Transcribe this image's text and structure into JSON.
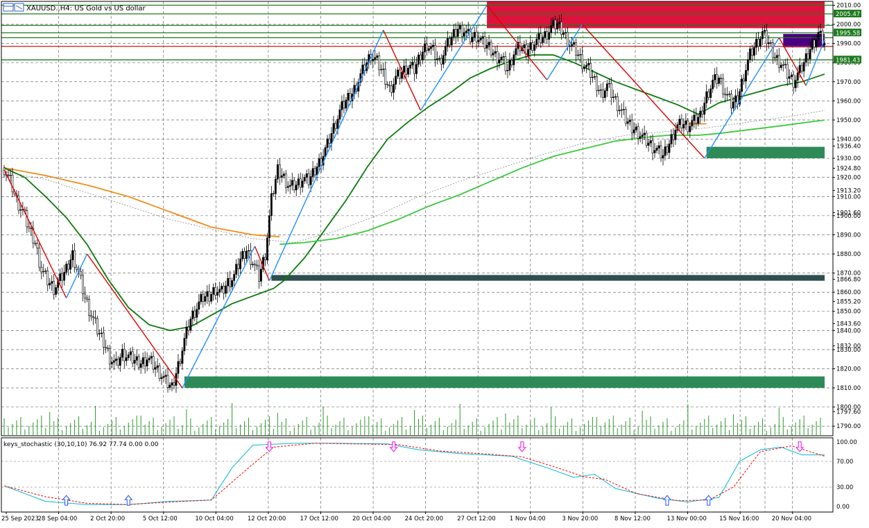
{
  "header": {
    "symbol_label": "XAUUSD.,H4:  US Gold vs US dollar",
    "icon": "chart-window-icon"
  },
  "indicator": {
    "label": "keys_stochastic (30,10,10) 76.92 77.74 0.00 0.00",
    "levels": [
      "100.00",
      "70.00",
      "30.00",
      "0.00"
    ]
  },
  "colors": {
    "bull_candle": "#000000",
    "up_leg": "#1e90ff",
    "down_leg": "#e00000",
    "ma_fast": "#0a7a0a",
    "ma_slow": "#3cc83c",
    "ma_orange": "#f08c14",
    "supply_zone": "#dc143c",
    "demand_zone": "#2e8b57",
    "dark_zone": "#2f4f4f",
    "purple_zone": "#4b0082",
    "stoch_main": "#00bcd4",
    "stoch_signal": "#ff0000",
    "arrow_down": "#ff00ff",
    "arrow_up": "#1e50ff"
  },
  "chart_data": {
    "type": "candlestick",
    "symbol": "XAUUSD.",
    "timeframe": "H4",
    "ylim": [
      1785,
      2012
    ],
    "y_ticks": [
      "2010.00",
      "2000.00",
      "1990.00",
      "1980.00",
      "1970.00",
      "1960.00",
      "1950.00",
      "1940.00",
      "1936.40",
      "1930.00",
      "1924.80",
      "1920.00",
      "1913.20",
      "1910.00",
      "1901.60",
      "1900.00",
      "1890.00",
      "1880.00",
      "1870.00",
      "1866.80",
      "1860.00",
      "1855.20",
      "1850.00",
      "1843.60",
      "1840.00",
      "1832.00",
      "1830.00",
      "1820.00",
      "1810.00",
      "1800.00",
      "1797.60",
      "1790.00"
    ],
    "price_tags": [
      {
        "label": "2005.47",
        "value": 2005.47,
        "color": "#1e7a1e"
      },
      {
        "label": "1995.58",
        "value": 1995.58,
        "color": "#1e7a1e"
      },
      {
        "label": "1981.43",
        "value": 1981.43,
        "color": "#1e7a1e"
      }
    ],
    "x_labels": [
      "25 Sep 2023",
      "28 Sep 04:00",
      "2 Oct 20:00",
      "5 Oct 12:00",
      "10 Oct 04:00",
      "12 Oct 20:00",
      "17 Oct 12:00",
      "20 Oct 04:00",
      "24 Oct 20:00",
      "27 Oct 12:00",
      "1 Nov 04:00",
      "3 Nov 20:00",
      "8 Nov 12:00",
      "13 Nov 00:00",
      "15 Nov 16:00",
      "20 Nov 04:00"
    ],
    "close_path": [
      [
        0,
        1925
      ],
      [
        3,
        1918
      ],
      [
        6,
        1908
      ],
      [
        9,
        1902
      ],
      [
        12,
        1893
      ],
      [
        15,
        1886
      ],
      [
        18,
        1872
      ],
      [
        21,
        1866
      ],
      [
        24,
        1862
      ],
      [
        27,
        1866
      ],
      [
        30,
        1872
      ],
      [
        33,
        1880
      ],
      [
        36,
        1870
      ],
      [
        39,
        1857
      ],
      [
        42,
        1848
      ],
      [
        45,
        1840
      ],
      [
        48,
        1834
      ],
      [
        51,
        1826
      ],
      [
        54,
        1822
      ],
      [
        57,
        1828
      ],
      [
        60,
        1826
      ],
      [
        63,
        1824
      ],
      [
        66,
        1823
      ],
      [
        69,
        1826
      ],
      [
        72,
        1822
      ],
      [
        75,
        1818
      ],
      [
        78,
        1813
      ],
      [
        81,
        1810
      ],
      [
        84,
        1822
      ],
      [
        87,
        1835
      ],
      [
        90,
        1846
      ],
      [
        93,
        1852
      ],
      [
        96,
        1857
      ],
      [
        99,
        1858
      ],
      [
        102,
        1862
      ],
      [
        105,
        1860
      ],
      [
        108,
        1865
      ],
      [
        111,
        1868
      ],
      [
        114,
        1877
      ],
      [
        117,
        1882
      ],
      [
        120,
        1876
      ],
      [
        123,
        1868
      ],
      [
        126,
        1880
      ],
      [
        129,
        1908
      ],
      [
        132,
        1924
      ],
      [
        135,
        1920
      ],
      [
        138,
        1915
      ],
      [
        141,
        1916
      ],
      [
        144,
        1919
      ],
      [
        147,
        1918
      ],
      [
        150,
        1924
      ],
      [
        153,
        1930
      ],
      [
        156,
        1937
      ],
      [
        159,
        1946
      ],
      [
        162,
        1954
      ],
      [
        165,
        1960
      ],
      [
        168,
        1964
      ],
      [
        171,
        1971
      ],
      [
        174,
        1978
      ],
      [
        177,
        1984
      ],
      [
        180,
        1980
      ],
      [
        183,
        1974
      ],
      [
        186,
        1966
      ],
      [
        189,
        1972
      ],
      [
        192,
        1975
      ],
      [
        195,
        1978
      ],
      [
        198,
        1976
      ],
      [
        201,
        1984
      ],
      [
        204,
        1990
      ],
      [
        207,
        1986
      ],
      [
        210,
        1980
      ],
      [
        213,
        1987
      ],
      [
        216,
        1993
      ],
      [
        219,
        1998
      ],
      [
        222,
        1997
      ],
      [
        225,
        1993
      ],
      [
        228,
        1994
      ],
      [
        231,
        1990
      ],
      [
        234,
        1988
      ],
      [
        237,
        1984
      ],
      [
        240,
        1982
      ],
      [
        243,
        1976
      ],
      [
        246,
        1985
      ],
      [
        249,
        1988
      ],
      [
        252,
        1986
      ],
      [
        255,
        1990
      ],
      [
        258,
        1992
      ],
      [
        261,
        1994
      ],
      [
        264,
        1998
      ],
      [
        267,
        2000
      ],
      [
        270,
        1996
      ],
      [
        273,
        1990
      ],
      [
        276,
        1986
      ],
      [
        279,
        1980
      ],
      [
        282,
        1976
      ],
      [
        285,
        1970
      ],
      [
        288,
        1964
      ],
      [
        291,
        1968
      ],
      [
        294,
        1962
      ],
      [
        297,
        1956
      ],
      [
        300,
        1950
      ],
      [
        303,
        1946
      ],
      [
        306,
        1944
      ],
      [
        309,
        1940
      ],
      [
        312,
        1937
      ],
      [
        315,
        1934
      ],
      [
        318,
        1931
      ],
      [
        321,
        1938
      ],
      [
        324,
        1946
      ],
      [
        327,
        1948
      ],
      [
        330,
        1947
      ],
      [
        333,
        1949
      ],
      [
        336,
        1952
      ],
      [
        339,
        1963
      ],
      [
        342,
        1970
      ],
      [
        345,
        1972
      ],
      [
        348,
        1964
      ],
      [
        351,
        1958
      ],
      [
        354,
        1961
      ],
      [
        357,
        1974
      ],
      [
        360,
        1984
      ],
      [
        363,
        1990
      ],
      [
        366,
        1995
      ],
      [
        369,
        1990
      ],
      [
        372,
        1983
      ],
      [
        375,
        1980
      ],
      [
        378,
        1974
      ],
      [
        381,
        1970
      ],
      [
        384,
        1975
      ],
      [
        387,
        1982
      ],
      [
        390,
        1990
      ],
      [
        393,
        1995
      ],
      [
        396,
        1990
      ]
    ],
    "moving_averages": [
      {
        "name": "orange",
        "points": [
          [
            0,
            1925
          ],
          [
            20,
            1921
          ],
          [
            40,
            1916
          ],
          [
            60,
            1910
          ],
          [
            80,
            1902
          ],
          [
            100,
            1894
          ],
          [
            120,
            1890
          ],
          [
            133,
            1889
          ]
        ]
      },
      {
        "name": "grey-dotted",
        "points": [
          [
            0,
            1923
          ],
          [
            20,
            1919
          ],
          [
            40,
            1912
          ],
          [
            60,
            1905
          ],
          [
            80,
            1898
          ],
          [
            100,
            1893
          ],
          [
            120,
            1888
          ],
          [
            140,
            1886
          ],
          [
            160,
            1892
          ],
          [
            180,
            1900
          ],
          [
            200,
            1910
          ],
          [
            220,
            1918
          ],
          [
            240,
            1925
          ],
          [
            260,
            1932
          ],
          [
            280,
            1938
          ],
          [
            300,
            1942
          ],
          [
            320,
            1944
          ],
          [
            340,
            1946
          ],
          [
            360,
            1949
          ],
          [
            380,
            1952
          ],
          [
            396,
            1955
          ]
        ]
      },
      {
        "name": "green-fast",
        "points": [
          [
            0,
            1925
          ],
          [
            10,
            1920
          ],
          [
            20,
            1910
          ],
          [
            30,
            1899
          ],
          [
            40,
            1885
          ],
          [
            50,
            1867
          ],
          [
            60,
            1852
          ],
          [
            70,
            1843
          ],
          [
            80,
            1840
          ],
          [
            90,
            1842
          ],
          [
            100,
            1848
          ],
          [
            110,
            1854
          ],
          [
            120,
            1858
          ],
          [
            130,
            1862
          ],
          [
            135,
            1866
          ],
          [
            145,
            1878
          ],
          [
            155,
            1893
          ],
          [
            165,
            1908
          ],
          [
            175,
            1925
          ],
          [
            185,
            1940
          ],
          [
            195,
            1949
          ],
          [
            205,
            1957
          ],
          [
            215,
            1964
          ],
          [
            225,
            1972
          ],
          [
            235,
            1977
          ],
          [
            245,
            1981
          ],
          [
            255,
            1984
          ],
          [
            265,
            1984
          ],
          [
            275,
            1980
          ],
          [
            285,
            1975
          ],
          [
            295,
            1970
          ],
          [
            305,
            1966
          ],
          [
            315,
            1962
          ],
          [
            325,
            1958
          ],
          [
            335,
            1953
          ],
          [
            345,
            1959
          ],
          [
            355,
            1962
          ],
          [
            365,
            1965
          ],
          [
            375,
            1968
          ],
          [
            385,
            1970
          ],
          [
            396,
            1974
          ]
        ]
      },
      {
        "name": "green-slow",
        "points": [
          [
            133,
            1885
          ],
          [
            145,
            1886
          ],
          [
            160,
            1888
          ],
          [
            175,
            1892
          ],
          [
            190,
            1898
          ],
          [
            205,
            1905
          ],
          [
            220,
            1911
          ],
          [
            235,
            1918
          ],
          [
            250,
            1925
          ],
          [
            265,
            1931
          ],
          [
            280,
            1935
          ],
          [
            295,
            1939
          ],
          [
            310,
            1941
          ],
          [
            320,
            1942
          ],
          [
            335,
            1942
          ],
          [
            345,
            1943
          ],
          [
            360,
            1945
          ],
          [
            375,
            1947
          ],
          [
            396,
            1950
          ]
        ]
      }
    ],
    "zigzag": [
      [
        0,
        1924,
        "down"
      ],
      [
        30,
        1857,
        "up"
      ],
      [
        40,
        1880,
        "down"
      ],
      [
        86,
        1810,
        "up"
      ],
      [
        121,
        1884,
        "down"
      ],
      [
        128,
        1866,
        "up"
      ],
      [
        183,
        1997,
        "down"
      ],
      [
        201,
        1955,
        "up"
      ],
      [
        233,
        2010,
        "down"
      ],
      [
        262,
        1971,
        "up"
      ],
      [
        279,
        2000,
        "down"
      ],
      [
        338,
        1930,
        "up"
      ],
      [
        374,
        1993,
        "down"
      ],
      [
        387,
        1968,
        "up"
      ],
      [
        396,
        1992,
        "down"
      ]
    ],
    "zones": [
      {
        "name": "supply",
        "from": 233,
        "to": 396,
        "y0": 1998,
        "y1": 2012
      },
      {
        "name": "purple",
        "from": 376,
        "to": 396,
        "y0": 1988,
        "y1": 1995
      },
      {
        "name": "demand-upper",
        "from": 339,
        "to": 396,
        "y0": 1930,
        "y1": 1936
      },
      {
        "name": "dark",
        "from": 129,
        "to": 396,
        "y0": 1866,
        "y1": 1869
      },
      {
        "name": "demand-lower",
        "from": 87,
        "to": 396,
        "y0": 1810,
        "y1": 1816
      }
    ],
    "h_lines": [
      2010,
      2005.47,
      1999.5,
      1995.58,
      1993,
      1988.5,
      1981.43
    ],
    "stochastic": {
      "main": [
        [
          0,
          32
        ],
        [
          20,
          8
        ],
        [
          40,
          3
        ],
        [
          60,
          3
        ],
        [
          80,
          8
        ],
        [
          100,
          10
        ],
        [
          110,
          60
        ],
        [
          120,
          95
        ],
        [
          140,
          98
        ],
        [
          160,
          98
        ],
        [
          185,
          97
        ],
        [
          200,
          88
        ],
        [
          220,
          82
        ],
        [
          245,
          78
        ],
        [
          262,
          60
        ],
        [
          275,
          45
        ],
        [
          285,
          50
        ],
        [
          295,
          28
        ],
        [
          315,
          13
        ],
        [
          330,
          7
        ],
        [
          345,
          14
        ],
        [
          355,
          70
        ],
        [
          365,
          88
        ],
        [
          375,
          92
        ],
        [
          385,
          80
        ],
        [
          396,
          80
        ]
      ],
      "signal": [
        [
          0,
          32
        ],
        [
          20,
          15
        ],
        [
          40,
          5
        ],
        [
          60,
          3
        ],
        [
          80,
          7
        ],
        [
          100,
          10
        ],
        [
          118,
          60
        ],
        [
          130,
          92
        ],
        [
          150,
          98
        ],
        [
          170,
          97
        ],
        [
          190,
          96
        ],
        [
          210,
          86
        ],
        [
          230,
          82
        ],
        [
          250,
          77
        ],
        [
          265,
          62
        ],
        [
          280,
          46
        ],
        [
          290,
          42
        ],
        [
          305,
          20
        ],
        [
          325,
          9
        ],
        [
          340,
          10
        ],
        [
          352,
          30
        ],
        [
          365,
          85
        ],
        [
          380,
          94
        ],
        [
          396,
          78
        ]
      ],
      "arrows_up": [
        30,
        60,
        320,
        340
      ],
      "arrows_down": [
        128,
        188,
        250,
        384
      ]
    }
  }
}
